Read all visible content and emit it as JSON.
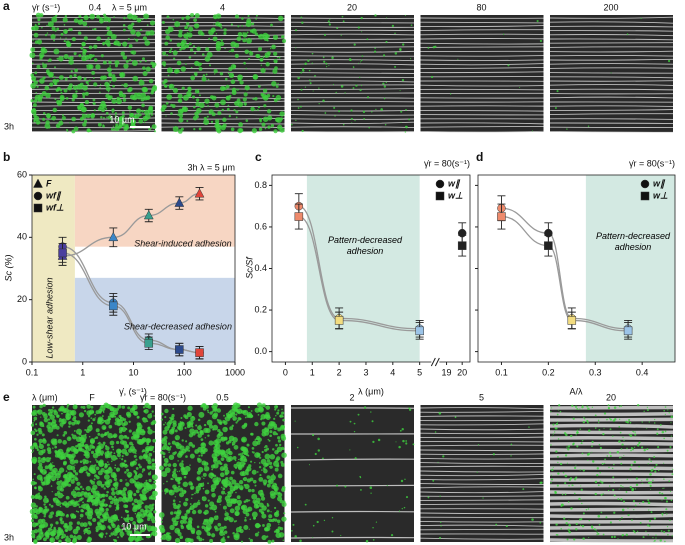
{
  "panel_labels": {
    "a": "a",
    "b": "b",
    "c": "c",
    "d": "d",
    "e": "e"
  },
  "panel_a": {
    "shear_label": "γ̇r (s⁻¹)",
    "lambda": "λ = 5 μm",
    "conditions": [
      "0.4",
      "4",
      "20",
      "80",
      "200"
    ],
    "time": "3h",
    "scale_bar": "10 μm"
  },
  "panel_e": {
    "lambda_label": "λ (μm)",
    "shear": "γ̇r = 80(s⁻¹)",
    "conditions": [
      "F",
      "0.5",
      "2",
      "5",
      "20"
    ],
    "time": "3h",
    "scale_bar": "10 μm"
  },
  "chart_data": [
    {
      "type": "scatter",
      "title": "3h  λ = 5 μm",
      "xlabel": "γ̇, (s⁻¹)",
      "ylabel": "Sc (%)",
      "xlog": true,
      "xlim": [
        0.1,
        1000
      ],
      "xticks": [
        0.1,
        1,
        10,
        100,
        1000
      ],
      "ylim": [
        0,
        60
      ],
      "yticks": [
        0,
        20,
        40,
        60
      ],
      "x": [
        0.4,
        4,
        20,
        80,
        200
      ],
      "point_colors": [
        "#4b3f9e",
        "#3a86c8",
        "#3aa08e",
        "#2c4a8c",
        "#e0453a"
      ],
      "series": [
        {
          "name": "F",
          "marker": "triangle",
          "values": [
            34,
            40,
            47,
            51,
            54
          ],
          "errors": [
            3,
            3,
            2,
            2,
            2
          ]
        },
        {
          "name": "wf∥",
          "marker": "circle",
          "values": [
            37,
            19,
            7,
            4,
            3
          ],
          "errors": [
            3,
            3,
            2,
            2,
            2
          ]
        },
        {
          "name": "wf⊥",
          "marker": "square",
          "values": [
            35,
            18,
            6,
            4,
            3
          ],
          "errors": [
            3,
            3,
            2,
            2,
            2
          ]
        }
      ],
      "shaded_regions": [
        {
          "xlim": [
            0.1,
            0.7
          ],
          "ylim": [
            0,
            60
          ],
          "color": "#efe9c2"
        },
        {
          "xlim": [
            0.7,
            1000
          ],
          "ylim": [
            37,
            60
          ],
          "color": "#f7d6c3"
        },
        {
          "xlim": [
            0.7,
            1000
          ],
          "ylim": [
            0,
            27
          ],
          "color": "#c8d6ea"
        }
      ],
      "annotations": [
        "Shear-induced adhesion",
        "Shear-decreased adhesion",
        "Low-shear adhesion"
      ]
    },
    {
      "type": "scatter",
      "title": "γ̇r = 80(s⁻¹)",
      "xlabel": "λ (μm)",
      "ylabel": "Sc/Sf",
      "xlim": [
        -0.5,
        20.5
      ],
      "xbreak": [
        5.4,
        18.6
      ],
      "xticks": [
        0,
        1,
        2,
        3,
        4,
        5,
        19,
        20
      ],
      "ylim": [
        -0.05,
        0.85
      ],
      "yticks": [
        {
          "value": 0,
          "label": "0.0"
        },
        0.2,
        0.4,
        0.6,
        0.8
      ],
      "x": [
        0.5,
        2,
        5,
        20
      ],
      "point_colors": [
        "#ee8a6c",
        "#f2dc80",
        "#9cc4e8",
        "#222222"
      ],
      "series": [
        {
          "name": "w∥",
          "marker": "circle",
          "values": [
            0.7,
            0.16,
            0.11,
            0.57
          ],
          "errors": [
            0.06,
            0.05,
            0.04,
            0.05
          ]
        },
        {
          "name": "w⊥",
          "marker": "square",
          "values": [
            0.65,
            0.15,
            0.1,
            0.51
          ],
          "errors": [
            0.06,
            0.04,
            0.04,
            0.05
          ]
        }
      ],
      "shaded_regions": [
        {
          "xlim": [
            0.8,
            5
          ],
          "ylim": [
            -0.05,
            0.85
          ],
          "color": "#d3e9e2"
        }
      ],
      "annotations": [
        "Pattern-decreased adhesion"
      ]
    },
    {
      "type": "scatter",
      "title": "γ̇r = 80(s⁻¹)",
      "xlabel": "A/λ",
      "show_ytick_labels": false,
      "xlim": [
        0.05,
        0.47
      ],
      "xticks": [
        0.1,
        0.2,
        0.3,
        0.4
      ],
      "ylim": [
        -0.05,
        0.85
      ],
      "yticks": [
        0,
        0.2,
        0.4,
        0.6,
        0.8
      ],
      "x": [
        0.1,
        0.2,
        0.25,
        0.37
      ],
      "point_colors": [
        "#ee8a6c",
        "#222222",
        "#f2dc80",
        "#9cc4e8"
      ],
      "series": [
        {
          "name": "w∥",
          "marker": "circle",
          "values": [
            0.69,
            0.57,
            0.16,
            0.11
          ],
          "errors": [
            0.06,
            0.05,
            0.05,
            0.04
          ]
        },
        {
          "name": "w⊥",
          "marker": "square",
          "values": [
            0.65,
            0.51,
            0.15,
            0.1
          ],
          "errors": [
            0.06,
            0.05,
            0.04,
            0.04
          ]
        }
      ],
      "shaded_regions": [
        {
          "xlim": [
            0.28,
            0.47
          ],
          "ylim": [
            -0.05,
            0.85
          ],
          "color": "#d3e9e2"
        }
      ],
      "annotations": [
        "Pattern-decreased adhesion"
      ]
    }
  ]
}
